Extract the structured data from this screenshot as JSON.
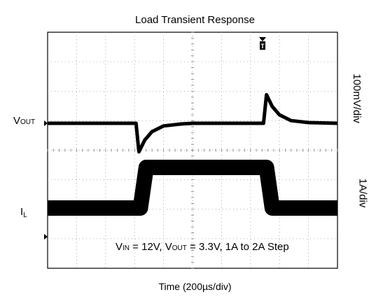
{
  "chart_data": {
    "type": "line",
    "title": "Load Transient Response",
    "xlabel": "Time (200µs/div)",
    "ylabel_top": "100mV/div",
    "ylabel_bottom": "1A/div",
    "condition": {
      "vin_sym": "V",
      "vin_sub": "IN",
      "vin_val": " = 12V, ",
      "vout_sym": "V",
      "vout_sub": "OUT",
      "vout_val": " = 3.3V, 1A to 2A Step"
    },
    "grid": true,
    "divisions": {
      "x": 10,
      "y": 8
    },
    "channels": [
      {
        "name_sym": "V",
        "name_sub": "OUT",
        "unit_per_div": "100mV/div",
        "x_div": [
          0,
          3.05,
          3.15,
          3.35,
          3.6,
          4.0,
          4.6,
          5.0,
          7.45,
          7.55,
          7.75,
          8.0,
          8.4,
          9.0,
          10
        ],
        "y_div_offset": [
          0,
          0,
          -0.85,
          -0.5,
          -0.25,
          -0.08,
          -0.02,
          0,
          0,
          0.85,
          0.5,
          0.25,
          0.08,
          0.02,
          0
        ]
      },
      {
        "name_sym": "I",
        "name_sub": "L",
        "unit_per_div": "1A/div",
        "x_div": [
          0,
          3.2,
          3.4,
          7.55,
          7.75,
          10
        ],
        "y_div_offset": [
          0,
          0,
          1.0,
          1.0,
          0,
          0
        ]
      }
    ],
    "trigger_marker": "T"
  }
}
